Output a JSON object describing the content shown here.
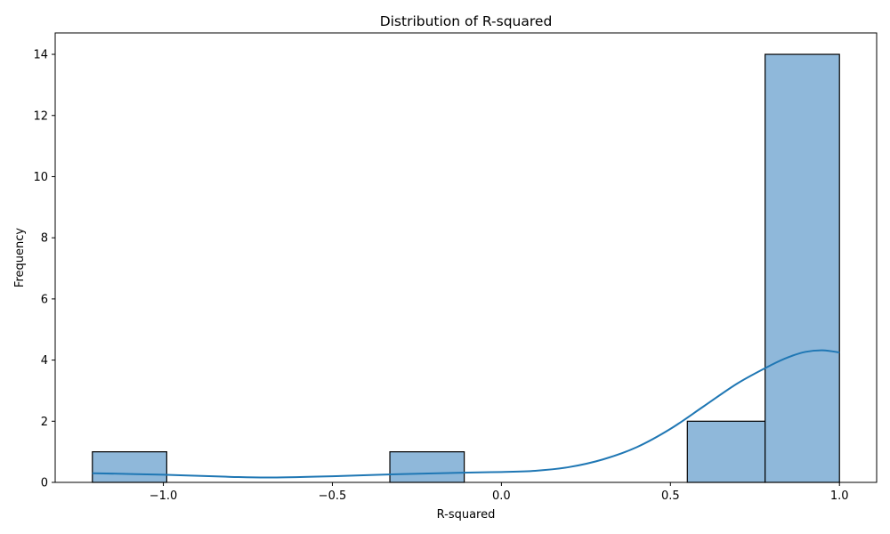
{
  "chart_data": {
    "type": "bar",
    "title": "Distribution of R-squared",
    "xlabel": "R-squared",
    "ylabel": "Frequency",
    "xlim": [
      -1.32,
      1.11
    ],
    "ylim": [
      0,
      14.7
    ],
    "xticks": [
      -1.0,
      -0.5,
      0.0,
      0.5,
      1.0
    ],
    "xtick_labels": [
      "−1.0",
      "−0.5",
      "0.0",
      "0.5",
      "1.0"
    ],
    "yticks": [
      0,
      2,
      4,
      6,
      8,
      10,
      12,
      14
    ],
    "ytick_labels": [
      "0",
      "2",
      "4",
      "6",
      "8",
      "10",
      "12",
      "14"
    ],
    "bins": [
      {
        "x0": -1.21,
        "x1": -0.99,
        "count": 1
      },
      {
        "x0": -0.99,
        "x1": -0.77,
        "count": 0
      },
      {
        "x0": -0.77,
        "x1": -0.55,
        "count": 0
      },
      {
        "x0": -0.55,
        "x1": -0.33,
        "count": 0
      },
      {
        "x0": -0.33,
        "x1": -0.11,
        "count": 1
      },
      {
        "x0": -0.11,
        "x1": 0.11,
        "count": 0
      },
      {
        "x0": 0.11,
        "x1": 0.33,
        "count": 0
      },
      {
        "x0": 0.33,
        "x1": 0.55,
        "count": 0
      },
      {
        "x0": 0.55,
        "x1": 0.78,
        "count": 2
      },
      {
        "x0": 0.78,
        "x1": 1.0,
        "count": 14
      }
    ],
    "kde": {
      "x": [
        -1.21,
        -1.0,
        -0.8,
        -0.68,
        -0.5,
        -0.3,
        -0.1,
        0.0,
        0.1,
        0.2,
        0.3,
        0.4,
        0.5,
        0.6,
        0.7,
        0.8,
        0.85,
        0.9,
        0.95,
        1.0
      ],
      "y": [
        0.3,
        0.25,
        0.18,
        0.16,
        0.2,
        0.27,
        0.32,
        0.34,
        0.38,
        0.5,
        0.75,
        1.15,
        1.75,
        2.5,
        3.25,
        3.85,
        4.1,
        4.27,
        4.32,
        4.25
      ]
    },
    "colors": {
      "bar_fill": "#8fb8da",
      "bar_edge": "#000000",
      "kde_line": "#1f77b4"
    }
  }
}
